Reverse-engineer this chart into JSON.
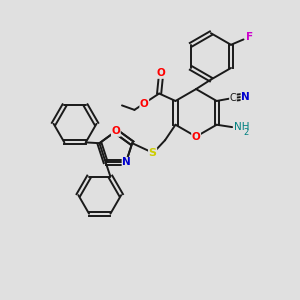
{
  "bg_color": "#e0e0e0",
  "bond_color": "#1a1a1a",
  "bond_width": 1.4,
  "fig_size": [
    3.0,
    3.0
  ],
  "dpi": 100,
  "colors": {
    "O": "#ff0000",
    "N": "#0000cd",
    "S": "#cccc00",
    "F": "#cc00cc",
    "C": "#1a1a1a",
    "NH2": "#008080"
  }
}
